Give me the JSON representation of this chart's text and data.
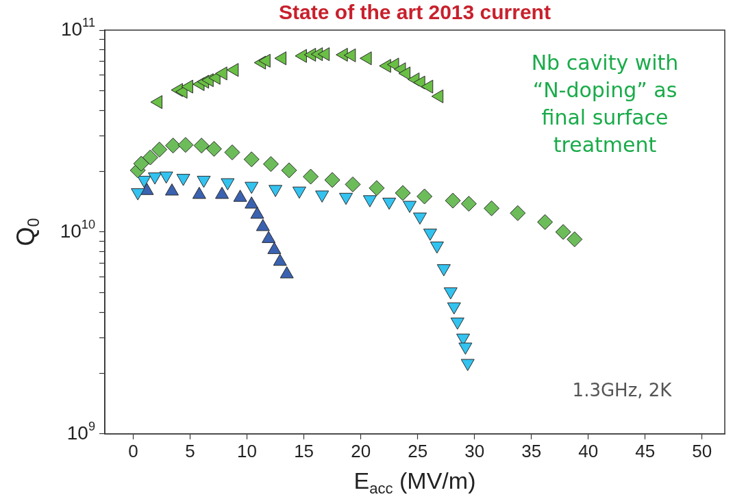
{
  "chart_data": {
    "type": "scatter",
    "title": "State of the art 2013 current",
    "xlabel": "E$_{acc}$ (MV/m)",
    "ylabel": "Q$_{0}$",
    "log": "y",
    "grid": false,
    "legend": false,
    "xlim": [
      -2.5,
      52
    ],
    "xticks": [
      0,
      5,
      10,
      15,
      20,
      25,
      30,
      35,
      40,
      45,
      50
    ],
    "ylim": [
      1000000000.0,
      100000000000.0
    ],
    "yticks": [
      {
        "value": 1000000000.0,
        "label": "10$^{9}$"
      },
      {
        "value": 2000000000.0,
        "label": null
      },
      {
        "value": 3000000000.0,
        "label": null
      },
      {
        "value": 4000000000.0,
        "label": null
      },
      {
        "value": 5000000000.0,
        "label": null
      },
      {
        "value": 6000000000.0,
        "label": null
      },
      {
        "value": 7000000000.0,
        "label": null
      },
      {
        "value": 8000000000.0,
        "label": null
      },
      {
        "value": 9000000000.0,
        "label": null
      },
      {
        "value": 10000000000.0,
        "label": "10$^{10}$"
      },
      {
        "value": 20000000000.0,
        "label": null
      },
      {
        "value": 30000000000.0,
        "label": null
      },
      {
        "value": 40000000000.0,
        "label": null
      },
      {
        "value": 50000000000.0,
        "label": null
      },
      {
        "value": 60000000000.0,
        "label": null
      },
      {
        "value": 70000000000.0,
        "label": null
      },
      {
        "value": 80000000000.0,
        "label": null
      },
      {
        "value": 90000000000.0,
        "label": null
      },
      {
        "value": 100000000000.0,
        "label": "10$^{11}$"
      }
    ],
    "annotations": [
      "Nb cavity with “N-doping” as final surface treatment",
      "1.3GHz, 2K"
    ],
    "series": [
      {
        "color": "#6abf45",
        "marker": "triangle-left",
        "x": [
          2.2,
          4.0,
          4.4,
          4.9,
          5.9,
          6.3,
          6.7,
          7.3,
          7.9,
          8.9,
          11.3,
          11.7,
          13.1,
          14.9,
          15.7,
          16.3,
          16.9,
          18.5,
          19.2,
          20.6,
          22.3,
          23.0,
          23.6,
          24.0,
          24.8,
          25.3,
          26.0,
          26.9
        ],
        "values": [
          44000000000.0,
          50500000000.0,
          49500000000.0,
          52500000000.0,
          54000000000.0,
          55500000000.0,
          56500000000.0,
          58000000000.0,
          61000000000.0,
          63500000000.0,
          69000000000.0,
          70500000000.0,
          72500000000.0,
          74500000000.0,
          75500000000.0,
          76000000000.0,
          76000000000.0,
          75500000000.0,
          75000000000.0,
          72500000000.0,
          66500000000.0,
          67500000000.0,
          64000000000.0,
          61000000000.0,
          57000000000.0,
          55000000000.0,
          52500000000.0,
          47000000000.0
        ]
      },
      {
        "color": "#6cbd5a",
        "marker": "diamond",
        "x": [
          0.4,
          0.7,
          1.5,
          2.3,
          3.5,
          4.6,
          6.0,
          7.1,
          8.7,
          10.4,
          12.1,
          13.7,
          15.6,
          17.5,
          19.3,
          21.4,
          23.7,
          25.6,
          28.1,
          29.5,
          31.5,
          33.8,
          36.2,
          37.8,
          38.8
        ],
        "values": [
          20200000000.0,
          21800000000.0,
          23400000000.0,
          25600000000.0,
          26800000000.0,
          27000000000.0,
          26800000000.0,
          25800000000.0,
          24800000000.0,
          22900000000.0,
          21700000000.0,
          20200000000.0,
          18800000000.0,
          18100000000.0,
          17200000000.0,
          16500000000.0,
          15600000000.0,
          15000000000.0,
          14300000000.0,
          13800000000.0,
          13100000000.0,
          12400000000.0,
          11200000000.0,
          10000000000.0,
          9200000000.0
        ]
      },
      {
        "color": "#33c3f0",
        "marker": "triangle-down",
        "x": [
          0.4,
          0.95,
          1.9,
          2.9,
          4.4,
          6.2,
          8.3,
          10.4,
          12.5,
          14.6,
          16.6,
          18.7,
          20.8,
          22.5,
          24.3,
          25.2,
          26.1,
          26.7,
          27.3,
          27.9,
          28.2,
          28.5,
          29.0,
          29.2,
          29.4
        ],
        "values": [
          15700000000.0,
          18100000000.0,
          18800000000.0,
          19000000000.0,
          18500000000.0,
          18100000000.0,
          17600000000.0,
          16900000000.0,
          16300000000.0,
          16000000000.0,
          15300000000.0,
          14900000000.0,
          14500000000.0,
          14100000000.0,
          13600000000.0,
          11900000000.0,
          9900000000.0,
          8550000000.0,
          6600000000.0,
          5070000000.0,
          4270000000.0,
          3590000000.0,
          2990000000.0,
          2700000000.0,
          2240000000.0
        ]
      },
      {
        "color": "#3a62b0",
        "marker": "triangle",
        "x": [
          1.2,
          3.4,
          5.8,
          7.8,
          9.4,
          10.4,
          10.9,
          11.4,
          11.9,
          12.4,
          12.9,
          13.5
        ],
        "values": [
          16000000000.0,
          15900000000.0,
          15300000000.0,
          15300000000.0,
          14800000000.0,
          13700000000.0,
          12200000000.0,
          10600000000.0,
          9250000000.0,
          8150000000.0,
          7130000000.0,
          6180000000.0
        ]
      }
    ]
  }
}
